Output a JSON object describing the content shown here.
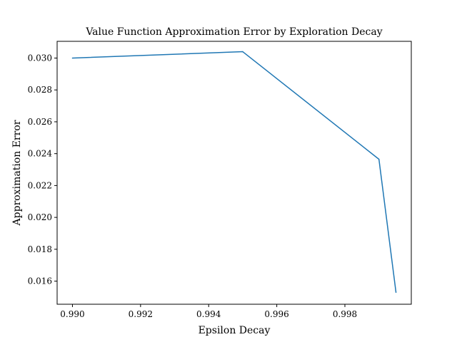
{
  "chart_data": {
    "type": "line",
    "title": "Value Function Approximation Error by Exploration Decay",
    "xlabel": "Epsilon Decay",
    "ylabel": "Approximation Error",
    "xlim": [
      0.98955,
      0.99995
    ],
    "ylim": [
      0.01455,
      0.03105
    ],
    "x_ticks": [
      "0.990",
      "0.992",
      "0.994",
      "0.996",
      "0.998"
    ],
    "y_ticks": [
      "0.016",
      "0.018",
      "0.020",
      "0.022",
      "0.024",
      "0.026",
      "0.028",
      "0.030"
    ],
    "grid": false,
    "series": [
      {
        "color": "#1f77b4",
        "x": [
          0.99,
          0.995,
          0.999,
          0.9995
        ],
        "y": [
          0.03,
          0.0304,
          0.02365,
          0.0153
        ]
      }
    ]
  }
}
